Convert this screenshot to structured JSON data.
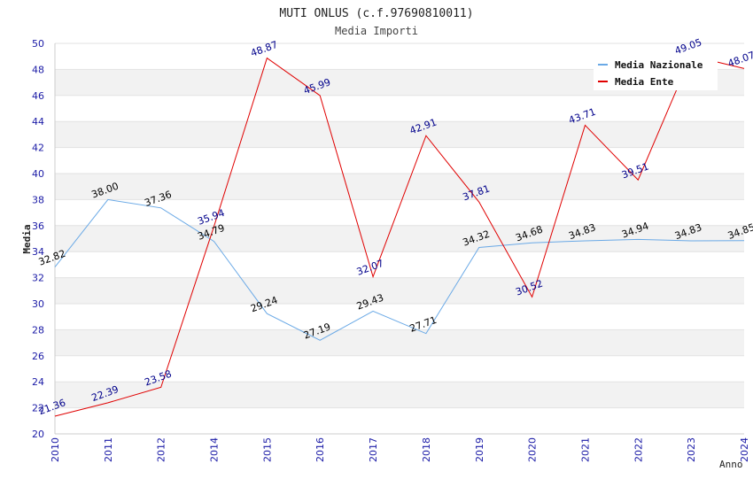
{
  "chart_data": {
    "type": "line",
    "title": "MUTI ONLUS (c.f.97690810011)",
    "subtitle": "Media Importi",
    "xlabel": "Anno",
    "ylabel": "Media",
    "ylim": [
      20,
      50
    ],
    "y_ticks": [
      20,
      22,
      24,
      26,
      28,
      30,
      32,
      34,
      36,
      38,
      40,
      42,
      44,
      46,
      48,
      50
    ],
    "categories": [
      "2010",
      "2011",
      "2012",
      "2014",
      "2015",
      "2016",
      "2017",
      "2018",
      "2019",
      "2020",
      "2021",
      "2022",
      "2023",
      "2024"
    ],
    "grid": "horizontal alternating bands",
    "legend_position": "top-right",
    "series": [
      {
        "name": "Media Nazionale",
        "color": "#6aa9e6",
        "label_color": "#000000",
        "values": [
          32.82,
          38.0,
          37.36,
          34.79,
          29.24,
          27.19,
          29.43,
          27.71,
          34.32,
          34.68,
          34.83,
          34.94,
          34.83,
          34.85
        ],
        "labels": [
          "32.82",
          "38.00",
          "37.36",
          "34.79",
          "29.24",
          "27.19",
          "29.43",
          "27.71",
          "34.32",
          "34.68",
          "34.83",
          "34.94",
          "34.83",
          "34.85"
        ]
      },
      {
        "name": "Media Ente",
        "color": "#e00000",
        "label_color": "#00008b",
        "values": [
          21.36,
          22.39,
          23.58,
          35.94,
          48.87,
          45.99,
          32.07,
          42.91,
          37.81,
          30.52,
          43.71,
          39.51,
          49.05,
          48.07
        ],
        "labels": [
          "21.36",
          "22.39",
          "23.58",
          "35.94",
          "48.87",
          "45.99",
          "32.07",
          "42.91",
          "37.81",
          "30.52",
          "43.71",
          "39.51",
          "49.05",
          "48.07"
        ]
      }
    ]
  }
}
